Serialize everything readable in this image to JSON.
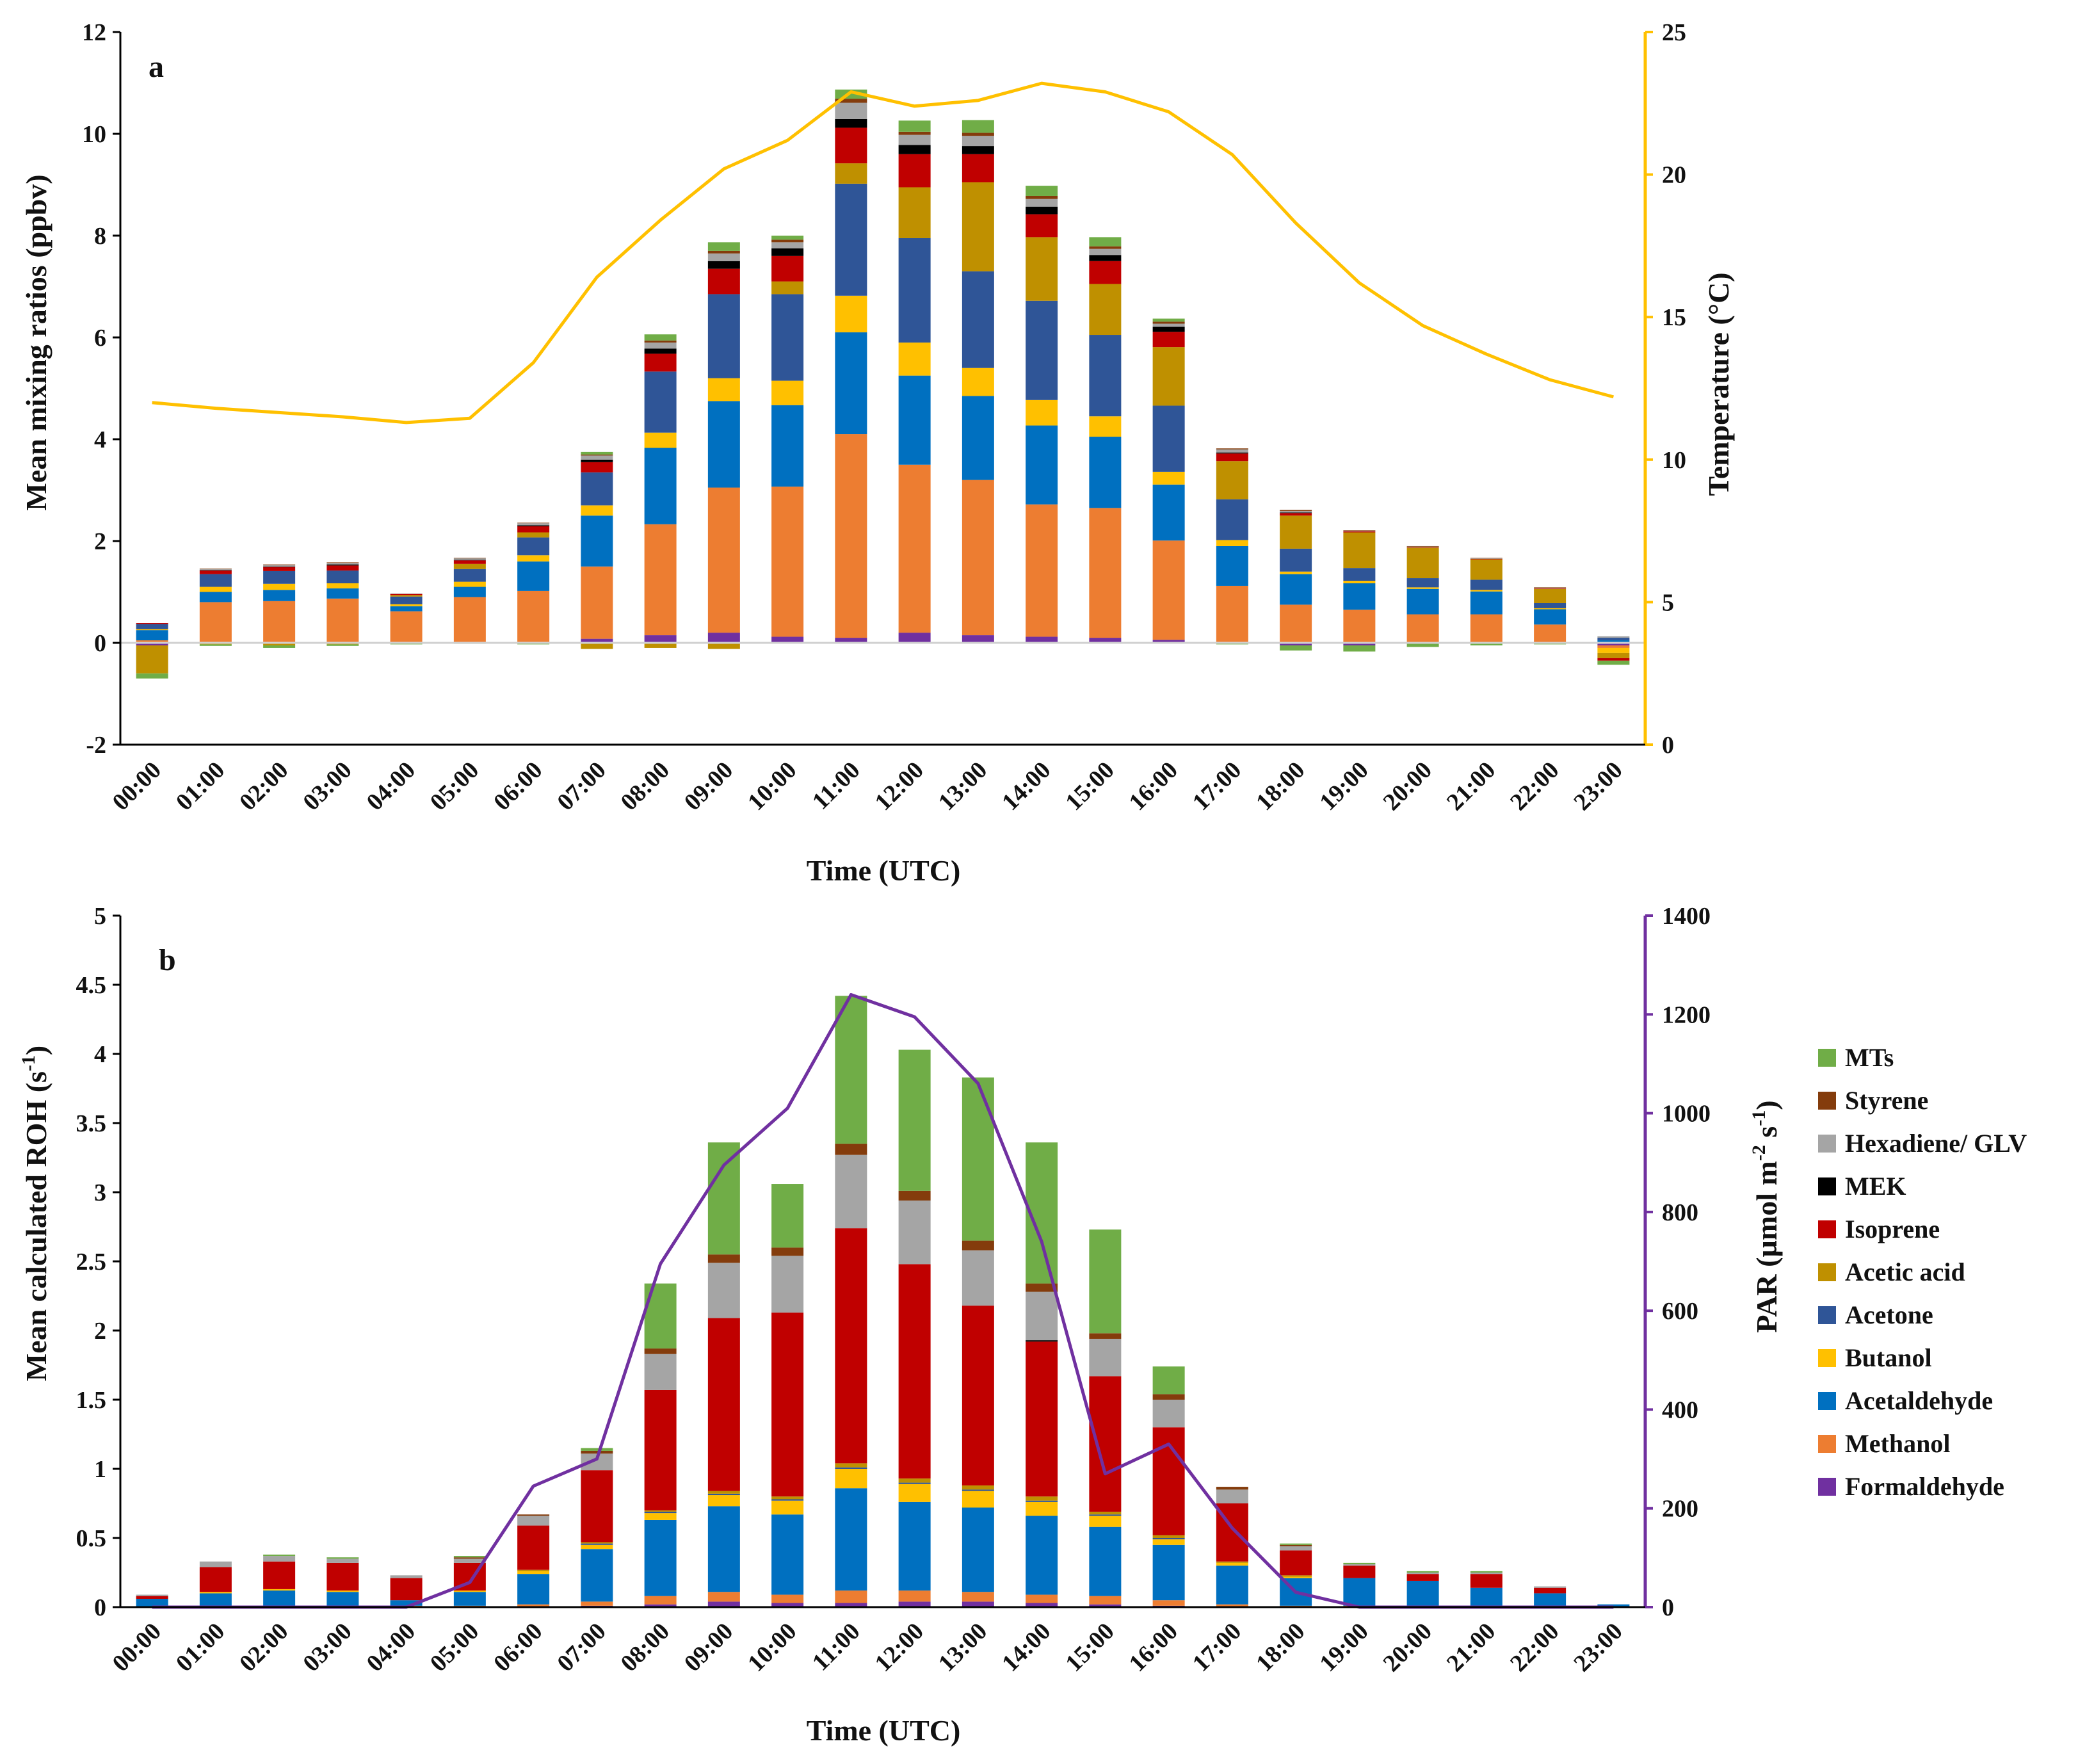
{
  "colors": {
    "Formaldehyde": "#7030a0",
    "Methanol": "#ed7d31",
    "Acetaldehyde": "#0070c0",
    "Butanol": "#ffc000",
    "Acetone": "#2f5597",
    "Acetic acid": "#bf9000",
    "Isoprene": "#c00000",
    "MEK": "#000000",
    "Hexadiene/ GLV": "#a5a5a5",
    "Styrene": "#843c0c",
    "MTs": "#70ad47",
    "temperature_line": "#ffc000",
    "par_line": "#7030a0"
  },
  "legend": {
    "order_top_to_bottom": [
      "MTs",
      "Styrene",
      "Hexadiene/ GLV",
      "MEK",
      "Isoprene",
      "Acetic acid",
      "Acetone",
      "Butanol",
      "Acetaldehyde",
      "Methanol",
      "Formaldehyde"
    ]
  },
  "chart_data": [
    {
      "panel": "a",
      "type": "bar",
      "stacked": true,
      "xlabel": "Time (UTC)",
      "ylabel": "Mean mixing ratios (ppbv)",
      "ylim": [
        -2,
        12
      ],
      "yticks": [
        "-2",
        "0",
        "2",
        "4",
        "6",
        "8",
        "10",
        "12"
      ],
      "y2label": "Temperature (°C)",
      "y2lim": [
        0,
        25
      ],
      "y2ticks": [
        "0",
        "5",
        "10",
        "15",
        "20",
        "25"
      ],
      "categories": [
        "00:00",
        "01:00",
        "02:00",
        "03:00",
        "04:00",
        "05:00",
        "06:00",
        "07:00",
        "08:00",
        "09:00",
        "10:00",
        "11:00",
        "12:00",
        "13:00",
        "14:00",
        "15:00",
        "16:00",
        "17:00",
        "18:00",
        "19:00",
        "20:00",
        "21:00",
        "22:00",
        "23:00"
      ],
      "series": [
        {
          "name": "Formaldehyde",
          "values": [
            -0.05,
            0.02,
            0.02,
            0.02,
            0.02,
            0.02,
            0.02,
            0.08,
            0.15,
            0.2,
            0.12,
            0.1,
            0.2,
            0.15,
            0.12,
            0.1,
            0.06,
            0.02,
            -0.05,
            -0.05,
            0.01,
            0.01,
            0.01,
            -0.05
          ]
        },
        {
          "name": "Methanol",
          "values": [
            0.05,
            0.78,
            0.8,
            0.85,
            0.6,
            0.88,
            1.0,
            1.42,
            2.18,
            2.85,
            2.95,
            4.0,
            3.3,
            3.05,
            2.6,
            2.55,
            1.95,
            1.1,
            0.75,
            0.65,
            0.55,
            0.55,
            0.35,
            -0.05
          ]
        },
        {
          "name": "Acetaldehyde",
          "values": [
            0.2,
            0.2,
            0.22,
            0.2,
            0.1,
            0.2,
            0.58,
            1.0,
            1.5,
            1.7,
            1.6,
            2.0,
            1.75,
            1.65,
            1.55,
            1.4,
            1.1,
            0.78,
            0.6,
            0.52,
            0.5,
            0.45,
            0.3,
            0.05
          ]
        },
        {
          "name": "Butanol",
          "values": [
            0.02,
            0.1,
            0.12,
            0.1,
            0.04,
            0.1,
            0.12,
            0.2,
            0.3,
            0.45,
            0.48,
            0.72,
            0.65,
            0.55,
            0.5,
            0.4,
            0.25,
            0.12,
            0.05,
            0.05,
            0.03,
            0.03,
            0.02,
            -0.1
          ]
        },
        {
          "name": "Acetone",
          "values": [
            0.1,
            0.25,
            0.25,
            0.25,
            0.15,
            0.25,
            0.35,
            0.65,
            1.2,
            1.65,
            1.7,
            2.2,
            2.05,
            1.9,
            1.95,
            1.6,
            1.3,
            0.8,
            0.45,
            0.25,
            0.18,
            0.2,
            0.1,
            0.05
          ]
        },
        {
          "name": "Acetic acid",
          "values": [
            -0.55,
            -0.03,
            -0.05,
            -0.03,
            0.03,
            0.1,
            0.1,
            -0.12,
            -0.1,
            -0.12,
            0.25,
            0.4,
            1.0,
            1.75,
            1.25,
            1.0,
            1.15,
            0.75,
            0.65,
            0.7,
            0.6,
            0.4,
            0.28,
            -0.1
          ]
        },
        {
          "name": "Isoprene",
          "values": [
            0.02,
            0.07,
            0.08,
            0.1,
            0.02,
            0.07,
            0.12,
            0.2,
            0.35,
            0.5,
            0.5,
            0.7,
            0.65,
            0.55,
            0.45,
            0.45,
            0.3,
            0.15,
            0.05,
            0.02,
            0.01,
            0.01,
            0.01,
            -0.05
          ]
        },
        {
          "name": "MEK",
          "values": [
            0.0,
            0.01,
            0.01,
            0.02,
            0.0,
            0.01,
            0.02,
            0.05,
            0.1,
            0.15,
            0.15,
            0.17,
            0.18,
            0.16,
            0.15,
            0.12,
            0.1,
            0.02,
            0.01,
            0.0,
            0.0,
            0.0,
            0.0,
            0.0
          ]
        },
        {
          "name": "Hexadiene/ GLV",
          "values": [
            0.0,
            0.02,
            0.03,
            0.03,
            0.01,
            0.03,
            0.04,
            0.08,
            0.12,
            0.15,
            0.12,
            0.32,
            0.2,
            0.2,
            0.15,
            0.12,
            0.06,
            0.06,
            0.03,
            0.01,
            0.01,
            0.01,
            0.01,
            0.03
          ]
        },
        {
          "name": "Styrene",
          "values": [
            0.0,
            0.01,
            0.01,
            0.01,
            0.0,
            0.01,
            0.01,
            0.02,
            0.04,
            0.05,
            0.05,
            0.08,
            0.06,
            0.06,
            0.06,
            0.05,
            0.04,
            0.02,
            0.02,
            0.01,
            0.01,
            0.01,
            0.01,
            0.0
          ]
        },
        {
          "name": "MTs",
          "values": [
            -0.1,
            -0.03,
            -0.05,
            -0.03,
            -0.03,
            -0.02,
            -0.03,
            0.05,
            0.12,
            0.17,
            0.08,
            0.18,
            0.22,
            0.25,
            0.2,
            0.18,
            0.06,
            -0.03,
            -0.1,
            -0.12,
            -0.08,
            -0.05,
            -0.03,
            -0.08
          ]
        }
      ],
      "line": {
        "name": "Temperature",
        "axis": "right",
        "values": [
          12.0,
          11.8,
          11.65,
          11.5,
          11.3,
          11.45,
          13.4,
          16.4,
          18.4,
          20.2,
          21.2,
          22.9,
          22.4,
          22.6,
          23.2,
          22.9,
          22.2,
          20.7,
          18.3,
          16.2,
          14.7,
          13.7,
          12.8,
          12.2
        ]
      }
    },
    {
      "panel": "b",
      "type": "bar",
      "stacked": true,
      "xlabel": "Time (UTC)",
      "ylabel": "Mean calculated ROH (s⁻¹)",
      "ylim": [
        0,
        5
      ],
      "yticks": [
        "0",
        "0.5",
        "1",
        "1.5",
        "2",
        "2.5",
        "3",
        "3.5",
        "4",
        "4.5",
        "5"
      ],
      "y2label": "PAR (µmol m⁻² s⁻¹)",
      "y2lim": [
        0,
        1400
      ],
      "y2ticks": [
        "0",
        "200",
        "400",
        "600",
        "800",
        "1000",
        "1200",
        "1400"
      ],
      "categories": [
        "00:00",
        "01:00",
        "02:00",
        "03:00",
        "04:00",
        "05:00",
        "06:00",
        "07:00",
        "08:00",
        "09:00",
        "10:00",
        "11:00",
        "12:00",
        "13:00",
        "14:00",
        "15:00",
        "16:00",
        "17:00",
        "18:00",
        "19:00",
        "20:00",
        "21:00",
        "22:00",
        "23:00"
      ],
      "series": [
        {
          "name": "Formaldehyde",
          "values": [
            0.0,
            0.0,
            0.0,
            0.0,
            0.0,
            0.0,
            0.0,
            0.01,
            0.02,
            0.04,
            0.03,
            0.03,
            0.04,
            0.04,
            0.03,
            0.02,
            0.01,
            0.0,
            0.0,
            0.0,
            0.0,
            0.0,
            0.0,
            0.0
          ]
        },
        {
          "name": "Methanol",
          "values": [
            0.0,
            0.01,
            0.01,
            0.01,
            0.01,
            0.01,
            0.02,
            0.03,
            0.06,
            0.07,
            0.06,
            0.09,
            0.08,
            0.07,
            0.06,
            0.06,
            0.04,
            0.02,
            0.01,
            0.01,
            0.01,
            0.01,
            0.01,
            0.0
          ]
        },
        {
          "name": "Acetaldehyde",
          "values": [
            0.06,
            0.09,
            0.11,
            0.1,
            0.04,
            0.1,
            0.22,
            0.38,
            0.55,
            0.62,
            0.58,
            0.74,
            0.64,
            0.61,
            0.57,
            0.5,
            0.4,
            0.28,
            0.2,
            0.2,
            0.18,
            0.13,
            0.09,
            0.02
          ]
        },
        {
          "name": "Butanol",
          "values": [
            0.0,
            0.01,
            0.01,
            0.01,
            0.0,
            0.01,
            0.02,
            0.03,
            0.05,
            0.08,
            0.1,
            0.14,
            0.13,
            0.12,
            0.1,
            0.08,
            0.04,
            0.02,
            0.01,
            0.0,
            0.0,
            0.0,
            0.0,
            0.0
          ]
        },
        {
          "name": "Acetone",
          "values": [
            0.0,
            0.0,
            0.0,
            0.0,
            0.0,
            0.0,
            0.0,
            0.01,
            0.01,
            0.01,
            0.01,
            0.01,
            0.01,
            0.01,
            0.01,
            0.01,
            0.01,
            0.0,
            0.0,
            0.0,
            0.0,
            0.0,
            0.0,
            0.0
          ]
        },
        {
          "name": "Acetic acid",
          "values": [
            0.0,
            0.0,
            0.0,
            0.0,
            0.0,
            0.0,
            0.01,
            0.01,
            0.01,
            0.02,
            0.02,
            0.03,
            0.03,
            0.03,
            0.03,
            0.02,
            0.02,
            0.01,
            0.01,
            0.0,
            0.0,
            0.0,
            0.0,
            0.0
          ]
        },
        {
          "name": "Isoprene",
          "values": [
            0.02,
            0.18,
            0.2,
            0.2,
            0.16,
            0.2,
            0.32,
            0.52,
            0.87,
            1.25,
            1.33,
            1.7,
            1.55,
            1.3,
            1.12,
            0.98,
            0.78,
            0.42,
            0.18,
            0.09,
            0.05,
            0.1,
            0.04,
            0.0
          ]
        },
        {
          "name": "MEK",
          "values": [
            0.0,
            0.0,
            0.0,
            0.0,
            0.0,
            0.0,
            0.0,
            0.0,
            0.0,
            0.0,
            0.0,
            0.0,
            0.0,
            0.0,
            0.01,
            0.0,
            0.0,
            0.0,
            0.0,
            0.0,
            0.0,
            0.0,
            0.0,
            0.0
          ]
        },
        {
          "name": "Hexadiene/ GLV",
          "values": [
            0.01,
            0.04,
            0.04,
            0.03,
            0.02,
            0.03,
            0.07,
            0.12,
            0.26,
            0.4,
            0.41,
            0.53,
            0.46,
            0.4,
            0.35,
            0.27,
            0.2,
            0.1,
            0.03,
            0.01,
            0.01,
            0.01,
            0.01,
            0.0
          ]
        },
        {
          "name": "Styrene",
          "values": [
            0.0,
            0.0,
            0.0,
            0.0,
            0.0,
            0.01,
            0.01,
            0.02,
            0.04,
            0.06,
            0.06,
            0.08,
            0.07,
            0.07,
            0.06,
            0.04,
            0.04,
            0.02,
            0.01,
            0.0,
            0.0,
            0.0,
            0.0,
            0.0
          ]
        },
        {
          "name": "MTs",
          "values": [
            0.0,
            0.0,
            0.01,
            0.01,
            0.0,
            0.01,
            0.0,
            0.02,
            0.47,
            0.81,
            0.46,
            1.07,
            1.02,
            1.18,
            1.02,
            0.75,
            0.2,
            0.0,
            0.01,
            0.01,
            0.01,
            0.01,
            0.0,
            0.0
          ]
        }
      ],
      "line": {
        "name": "PAR",
        "axis": "right",
        "values": [
          0,
          0,
          0,
          0,
          0,
          50,
          245,
          300,
          695,
          895,
          1010,
          1240,
          1195,
          1060,
          740,
          270,
          330,
          160,
          30,
          0,
          0,
          0,
          0,
          0
        ]
      }
    }
  ],
  "panels": [
    {
      "letter": "a",
      "xlabel": "Time (UTC)",
      "ylabel": "Mean mixing ratios (ppbv)",
      "y2label": "Temperature (°C)"
    },
    {
      "letter": "b",
      "xlabel": "Time (UTC)",
      "ylabel": "Mean calculated ROH (s",
      "ylabel_sup": "-1",
      "ylabel_end": ")",
      "y2label_a": "PAR (µmol m",
      "y2label_sup1": "-2",
      "y2label_b": " s",
      "y2label_sup2": "-1",
      "y2label_end": ")"
    }
  ]
}
